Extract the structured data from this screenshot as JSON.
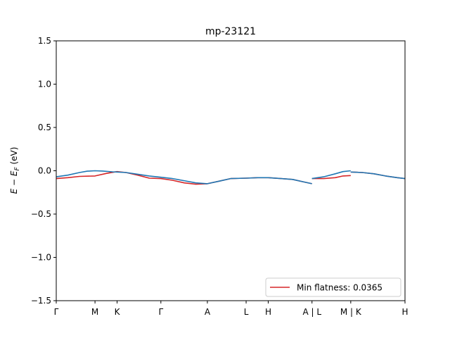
{
  "chart_data": {
    "type": "line",
    "title": "mp-23121",
    "ylabel": "E − E_F (eV)",
    "ylabel_parts": {
      "main": "E − E",
      "sub": "F",
      "unit": " (eV)"
    },
    "ylim": [
      -1.5,
      1.5
    ],
    "xlim": [
      0,
      9.0
    ],
    "grid": false,
    "legend_position": "lower right",
    "yticks": [
      {
        "value": -1.5,
        "label": "−1.5"
      },
      {
        "value": -1.0,
        "label": "−1.0"
      },
      {
        "value": -0.5,
        "label": "−0.5"
      },
      {
        "value": 0.0,
        "label": "0.0"
      },
      {
        "value": 0.5,
        "label": "0.5"
      },
      {
        "value": 1.0,
        "label": "1.0"
      },
      {
        "value": 1.5,
        "label": "1.5"
      }
    ],
    "xticks": [
      {
        "x": 0.0,
        "label": "Γ"
      },
      {
        "x": 1.0,
        "label": "M"
      },
      {
        "x": 1.57,
        "label": "K"
      },
      {
        "x": 2.7,
        "label": "Γ"
      },
      {
        "x": 3.9,
        "label": "A"
      },
      {
        "x": 4.9,
        "label": "L"
      },
      {
        "x": 5.47,
        "label": "H"
      },
      {
        "x": 6.6,
        "label": "A | L"
      },
      {
        "x": 7.6,
        "label": "M | K"
      },
      {
        "x": 9.0,
        "label": "H"
      }
    ],
    "series": [
      {
        "name": "",
        "color": "#1f77b4",
        "segments": [
          [
            [
              0.0,
              -0.07
            ],
            [
              0.3,
              -0.05
            ],
            [
              0.6,
              -0.02
            ],
            [
              0.8,
              -0.005
            ],
            [
              1.0,
              0.0
            ],
            [
              1.2,
              -0.003
            ],
            [
              1.45,
              -0.012
            ],
            [
              1.57,
              -0.015
            ],
            [
              1.8,
              -0.02
            ],
            [
              2.1,
              -0.04
            ],
            [
              2.4,
              -0.06
            ],
            [
              2.7,
              -0.075
            ],
            [
              3.0,
              -0.09
            ],
            [
              3.3,
              -0.115
            ],
            [
              3.6,
              -0.14
            ],
            [
              3.9,
              -0.15
            ],
            [
              4.2,
              -0.12
            ],
            [
              4.5,
              -0.09
            ],
            [
              4.9,
              -0.085
            ],
            [
              5.2,
              -0.08
            ],
            [
              5.47,
              -0.08
            ],
            [
              5.8,
              -0.09
            ],
            [
              6.1,
              -0.1
            ],
            [
              6.4,
              -0.13
            ],
            [
              6.6,
              -0.15
            ]
          ],
          [
            [
              6.6,
              -0.09
            ],
            [
              6.9,
              -0.07
            ],
            [
              7.2,
              -0.035
            ],
            [
              7.4,
              -0.01
            ],
            [
              7.6,
              0.0
            ]
          ],
          [
            [
              7.6,
              -0.015
            ],
            [
              7.9,
              -0.02
            ],
            [
              8.2,
              -0.035
            ],
            [
              8.5,
              -0.06
            ],
            [
              8.8,
              -0.08
            ],
            [
              9.0,
              -0.09
            ]
          ]
        ]
      },
      {
        "name": "Min flatness: 0.0365",
        "color": "#d62728",
        "segments": [
          [
            [
              0.0,
              -0.09
            ],
            [
              0.3,
              -0.08
            ],
            [
              0.6,
              -0.065
            ],
            [
              1.0,
              -0.06
            ],
            [
              1.3,
              -0.03
            ],
            [
              1.57,
              -0.01
            ],
            [
              1.8,
              -0.02
            ],
            [
              2.1,
              -0.05
            ],
            [
              2.4,
              -0.085
            ],
            [
              2.7,
              -0.09
            ],
            [
              3.0,
              -0.11
            ],
            [
              3.3,
              -0.14
            ],
            [
              3.6,
              -0.155
            ],
            [
              3.9,
              -0.15
            ],
            [
              4.2,
              -0.12
            ],
            [
              4.5,
              -0.09
            ],
            [
              4.9,
              -0.085
            ],
            [
              5.2,
              -0.08
            ],
            [
              5.47,
              -0.08
            ],
            [
              5.8,
              -0.09
            ],
            [
              6.1,
              -0.1
            ],
            [
              6.4,
              -0.13
            ],
            [
              6.6,
              -0.15
            ]
          ],
          [
            [
              6.6,
              -0.09
            ],
            [
              6.9,
              -0.09
            ],
            [
              7.2,
              -0.08
            ],
            [
              7.4,
              -0.06
            ],
            [
              7.6,
              -0.055
            ]
          ],
          [
            [
              7.6,
              -0.015
            ],
            [
              7.9,
              -0.02
            ],
            [
              8.2,
              -0.035
            ],
            [
              8.5,
              -0.06
            ],
            [
              8.8,
              -0.08
            ],
            [
              9.0,
              -0.09
            ]
          ]
        ]
      }
    ]
  }
}
